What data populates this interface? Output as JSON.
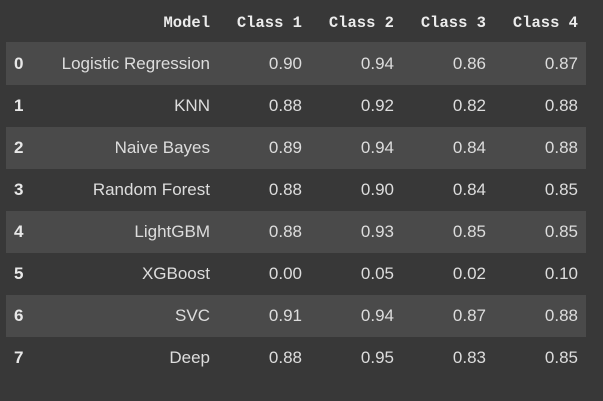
{
  "table": {
    "columns": [
      "Model",
      "Class 1",
      "Class 2",
      "Class 3",
      "Class 4"
    ],
    "rows": [
      {
        "index": "0",
        "model": "Logistic Regression",
        "c1": "0.90",
        "c2": "0.94",
        "c3": "0.86",
        "c4": "0.87"
      },
      {
        "index": "1",
        "model": "KNN",
        "c1": "0.88",
        "c2": "0.92",
        "c3": "0.82",
        "c4": "0.88"
      },
      {
        "index": "2",
        "model": "Naive Bayes",
        "c1": "0.89",
        "c2": "0.94",
        "c3": "0.84",
        "c4": "0.88"
      },
      {
        "index": "3",
        "model": "Random Forest",
        "c1": "0.88",
        "c2": "0.90",
        "c3": "0.84",
        "c4": "0.85"
      },
      {
        "index": "4",
        "model": "LightGBM",
        "c1": "0.88",
        "c2": "0.93",
        "c3": "0.85",
        "c4": "0.85"
      },
      {
        "index": "5",
        "model": "XGBoost",
        "c1": "0.00",
        "c2": "0.05",
        "c3": "0.02",
        "c4": "0.10"
      },
      {
        "index": "6",
        "model": "SVC",
        "c1": "0.91",
        "c2": "0.94",
        "c3": "0.87",
        "c4": "0.88"
      },
      {
        "index": "7",
        "model": "Deep",
        "c1": "0.88",
        "c2": "0.95",
        "c3": "0.83",
        "c4": "0.85"
      }
    ]
  },
  "colors": {
    "background": "#383838",
    "stripe": "#4a4a4a",
    "text": "#dddddd"
  }
}
